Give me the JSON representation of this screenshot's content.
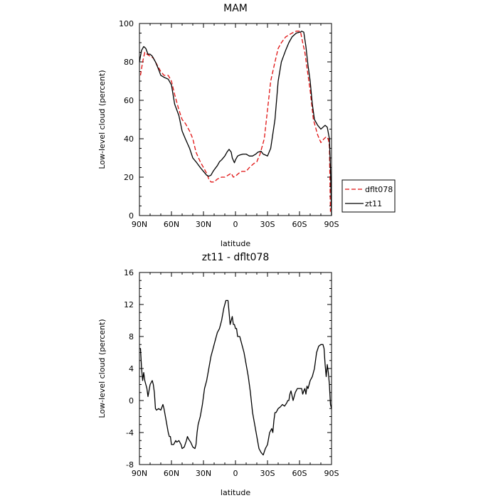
{
  "chart_data": [
    {
      "type": "line",
      "title": "MAM",
      "xlabel": "latitude",
      "ylabel": "Low-level cloud (percent)",
      "xlim": [
        90,
        -90
      ],
      "ylim": [
        0,
        100
      ],
      "x_ticks": [
        90,
        60,
        30,
        0,
        -30,
        -60,
        -90
      ],
      "x_tick_labels": [
        "90N",
        "60N",
        "30N",
        "0",
        "30S",
        "60S",
        "90S"
      ],
      "y_ticks": [
        0,
        20,
        40,
        60,
        80,
        100
      ],
      "y_tick_labels": [
        "0",
        "20",
        "40",
        "60",
        "80",
        "100"
      ],
      "grid": false,
      "legend": {
        "placement": "outside-right",
        "entries": [
          {
            "name": "dflt078",
            "color": "#e01010",
            "dash": "dashed"
          },
          {
            "name": "zt11",
            "color": "#000000",
            "dash": "solid"
          }
        ]
      },
      "series": [
        {
          "name": "dflt078",
          "color": "#e01010",
          "dash": "dashed",
          "x": [
            89,
            87,
            85,
            83,
            80,
            77,
            73,
            70,
            67,
            63,
            60,
            57,
            53,
            50,
            47,
            43,
            40,
            37,
            33,
            30,
            27,
            25,
            23,
            20,
            17,
            13,
            10,
            7,
            4,
            2,
            0,
            -3,
            -6,
            -10,
            -13,
            -17,
            -20,
            -23,
            -27,
            -30,
            -33,
            -37,
            -40,
            -43,
            -47,
            -50,
            -53,
            -57,
            -60,
            -61,
            -63,
            -65,
            -67,
            -70,
            -73,
            -77,
            -80,
            -83,
            -85,
            -87,
            -88,
            -89
          ],
          "y": [
            73,
            80,
            85,
            84,
            83,
            82,
            78,
            75,
            73,
            73,
            70,
            63,
            55,
            50,
            48,
            44,
            40,
            33,
            28,
            25,
            22,
            19,
            17.5,
            17.5,
            19,
            20,
            20,
            21,
            22,
            20,
            20.5,
            22,
            23,
            23,
            25,
            27,
            28,
            32,
            40,
            55,
            70,
            80,
            87,
            90,
            93,
            94,
            95,
            96,
            96,
            95.5,
            90,
            85,
            77,
            65,
            50,
            42,
            38,
            40,
            41,
            40,
            36,
            2
          ]
        },
        {
          "name": "zt11",
          "color": "#000000",
          "dash": "solid",
          "x": [
            90,
            88,
            86,
            84,
            82,
            80,
            78,
            75,
            72,
            70,
            67,
            63,
            60,
            57,
            53,
            50,
            47,
            43,
            40,
            37,
            33,
            30,
            27,
            25,
            23,
            21,
            19,
            17,
            15,
            13,
            10,
            8,
            6,
            4,
            3,
            1,
            0,
            -2,
            -4,
            -7,
            -10,
            -13,
            -16,
            -19,
            -21,
            -24,
            -26,
            -28,
            -30,
            -33,
            -37,
            -40,
            -43,
            -47,
            -50,
            -53,
            -57,
            -60,
            -61,
            -62,
            -64,
            -66,
            -68,
            -70,
            -72,
            -74,
            -77,
            -80,
            -82,
            -84,
            -86,
            -87,
            -88,
            -89,
            -90
          ],
          "y": [
            80,
            86,
            88,
            87,
            84,
            84,
            83,
            80,
            76,
            73,
            72,
            71,
            68,
            58,
            52,
            44,
            40,
            35,
            30,
            28,
            25,
            23,
            21,
            20.5,
            21,
            23,
            24.5,
            26,
            28,
            29,
            31,
            33,
            34.5,
            33,
            30,
            27.5,
            29,
            31,
            31.5,
            32,
            32,
            31,
            31,
            32,
            33,
            33.5,
            32,
            31.5,
            31,
            35,
            50,
            70,
            80,
            86,
            90,
            93,
            95,
            95.5,
            95.5,
            96,
            95.5,
            88,
            78,
            70,
            58,
            50,
            47,
            45,
            46,
            47,
            46,
            43,
            40,
            25,
            0
          ]
        }
      ]
    },
    {
      "type": "line",
      "title": "zt11 - dflt078",
      "xlabel": "latitude",
      "ylabel": "Low-level cloud (percent)",
      "xlim": [
        90,
        -90
      ],
      "ylim": [
        -8,
        16
      ],
      "x_ticks": [
        90,
        60,
        30,
        0,
        -30,
        -60,
        -90
      ],
      "x_tick_labels": [
        "90N",
        "60N",
        "30N",
        "0",
        "30S",
        "60S",
        "90S"
      ],
      "y_ticks": [
        -8,
        -4,
        0,
        4,
        8,
        12,
        16
      ],
      "y_tick_labels": [
        "-8",
        "-4",
        "0",
        "4",
        "8",
        "12",
        "16"
      ],
      "grid": false,
      "series": [
        {
          "color": "#000000",
          "dash": "solid",
          "x": [
            90,
            89,
            88,
            87,
            86,
            85,
            84,
            83,
            82,
            80,
            78,
            77,
            76,
            75,
            74,
            72,
            70,
            68,
            67,
            65,
            63,
            62,
            61,
            60,
            58,
            56,
            55,
            53,
            51,
            50,
            48,
            46,
            45,
            44,
            43,
            42,
            40,
            38,
            37,
            36,
            35,
            34,
            33,
            31,
            29,
            27,
            25,
            23,
            21,
            19,
            17,
            15,
            13,
            11,
            9,
            7,
            6,
            5,
            4,
            3,
            2,
            1,
            0,
            -1,
            -2,
            -3,
            -4,
            -6,
            -8,
            -10,
            -12,
            -14,
            -16,
            -18,
            -20,
            -22,
            -24,
            -26,
            -28,
            -30,
            -32,
            -34,
            -35,
            -36,
            -37,
            -38,
            -40,
            -42,
            -44,
            -46,
            -48,
            -49,
            -50,
            -51,
            -52,
            -54,
            -56,
            -58,
            -60,
            -62,
            -63,
            -64,
            -65,
            -66,
            -67,
            -68,
            -70,
            -72,
            -74,
            -76,
            -78,
            -80,
            -82,
            -83,
            -84,
            -85,
            -86,
            -87,
            -88,
            -89,
            -90
          ],
          "y": [
            6.5,
            6.5,
            4,
            2.5,
            3.5,
            2.5,
            2,
            1.5,
            0.5,
            2,
            2.5,
            2,
            1,
            -1,
            -1.2,
            -1,
            -1.2,
            -0.5,
            -1,
            -2.5,
            -4,
            -4.5,
            -4.5,
            -5.5,
            -5.5,
            -5,
            -5.2,
            -5,
            -5.5,
            -6,
            -5.8,
            -5,
            -4.5,
            -4.8,
            -5,
            -5.2,
            -5.8,
            -6,
            -5.5,
            -4,
            -3,
            -2.5,
            -2,
            -0.5,
            1.5,
            2.5,
            4,
            5.5,
            6.5,
            7.5,
            8.5,
            9,
            10,
            11.5,
            12.5,
            12.5,
            11,
            9.5,
            10,
            10.5,
            9.5,
            9.5,
            9,
            9,
            8,
            8,
            8,
            7,
            6,
            4.5,
            3,
            1,
            -1.5,
            -3,
            -4.5,
            -6,
            -6.5,
            -6.8,
            -6,
            -5.5,
            -4,
            -3.5,
            -4,
            -2.5,
            -1.5,
            -1.5,
            -1,
            -0.8,
            -0.5,
            -0.7,
            -0.3,
            0,
            0,
            0.8,
            1.2,
            0,
            1,
            1.5,
            1.5,
            1.5,
            0.8,
            1.2,
            1.5,
            0.8,
            1.8,
            1.5,
            2.5,
            3,
            4,
            6,
            6.8,
            7,
            7,
            6.5,
            4.5,
            3,
            4.5,
            3.5,
            2,
            -0.5,
            -1
          ]
        }
      ]
    }
  ]
}
